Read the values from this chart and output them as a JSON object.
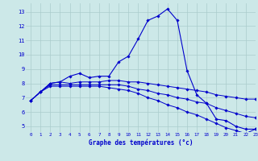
{
  "title": "Graphe des températures (°c)",
  "background_color": "#cce8e8",
  "grid_color": "#aacccc",
  "line_color": "#0000cc",
  "xlim": [
    -0.5,
    23
  ],
  "ylim": [
    4.6,
    13.6
  ],
  "yticks": [
    5,
    6,
    7,
    8,
    9,
    10,
    11,
    12,
    13
  ],
  "xticks": [
    0,
    1,
    2,
    3,
    4,
    5,
    6,
    7,
    8,
    9,
    10,
    11,
    12,
    13,
    14,
    15,
    16,
    17,
    18,
    19,
    20,
    21,
    22,
    23
  ],
  "hours": [
    0,
    1,
    2,
    3,
    4,
    5,
    6,
    7,
    8,
    9,
    10,
    11,
    12,
    13,
    14,
    15,
    16,
    17,
    18,
    19,
    20,
    21,
    22,
    23
  ],
  "temp_main": [
    6.8,
    7.4,
    8.0,
    8.1,
    8.5,
    8.7,
    8.4,
    8.5,
    8.5,
    9.5,
    9.9,
    11.1,
    12.4,
    12.7,
    13.2,
    12.4,
    8.9,
    7.2,
    6.6,
    5.5,
    5.4,
    5.0,
    4.8,
    4.8
  ],
  "temp_line2": [
    6.8,
    7.4,
    8.0,
    8.1,
    8.0,
    8.1,
    8.1,
    8.1,
    8.2,
    8.2,
    8.1,
    8.1,
    8.0,
    7.9,
    7.8,
    7.7,
    7.6,
    7.5,
    7.4,
    7.2,
    7.1,
    7.0,
    6.9,
    6.9
  ],
  "temp_line3": [
    6.8,
    7.4,
    7.9,
    7.9,
    7.9,
    7.9,
    7.9,
    7.9,
    7.9,
    7.9,
    7.8,
    7.6,
    7.5,
    7.3,
    7.2,
    7.0,
    6.9,
    6.7,
    6.6,
    6.3,
    6.1,
    5.9,
    5.7,
    5.6
  ],
  "temp_line4": [
    6.8,
    7.4,
    7.8,
    7.8,
    7.8,
    7.8,
    7.8,
    7.8,
    7.7,
    7.6,
    7.5,
    7.3,
    7.0,
    6.8,
    6.5,
    6.3,
    6.0,
    5.8,
    5.5,
    5.2,
    4.9,
    4.7,
    4.5,
    4.8
  ]
}
